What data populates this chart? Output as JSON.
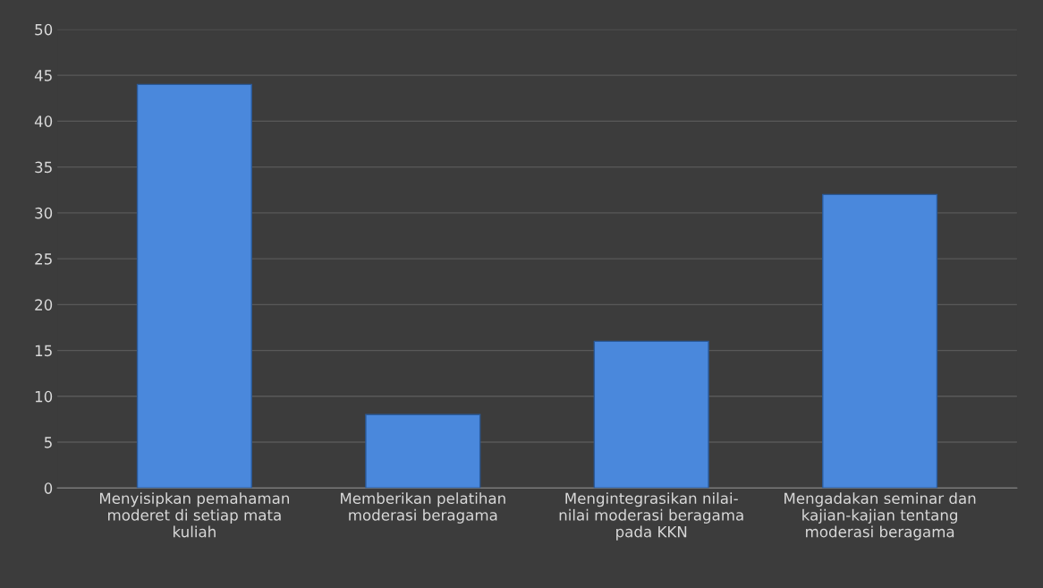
{
  "chart_data": {
    "type": "bar",
    "categories": [
      "Menyisipkan pemahaman\nmoderet di setiap mata\nkuliah",
      "Memberikan pelatihan\nmoderasi beragama",
      "Mengintegrasikan nilai-\nnilai moderasi beragama\npada KKN",
      "Mengadakan seminar dan\nkajian-kajian tentang\nmoderasi beragama"
    ],
    "values": [
      44,
      8,
      16,
      32
    ],
    "color": "#4a88dc",
    "ylim": [
      0,
      50
    ],
    "yticks": [
      0,
      5,
      10,
      15,
      20,
      25,
      30,
      35,
      40,
      45,
      50
    ],
    "grid": "y",
    "legend": false
  }
}
